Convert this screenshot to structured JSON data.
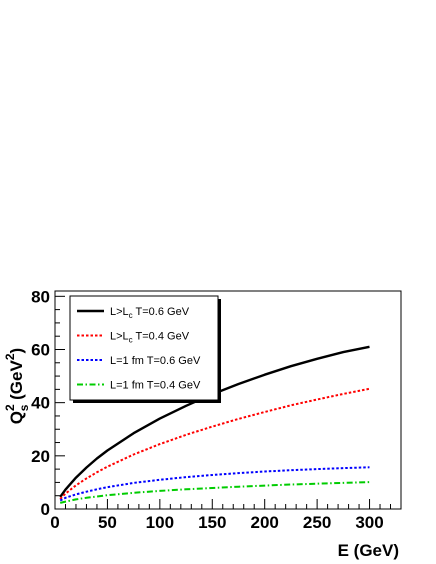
{
  "chart_data": {
    "type": "line",
    "xlabel": "E (GeV)",
    "ylabel_main": "Q",
    "ylabel_sup": "2",
    "ylabel_sub": "s",
    "ylabel_unit_pre": "(GeV",
    "ylabel_unit_sup": "2",
    "ylabel_unit_post": ")",
    "xlim": [
      0,
      330
    ],
    "ylim": [
      0,
      82
    ],
    "xticks": [
      0,
      50,
      100,
      150,
      200,
      250,
      300
    ],
    "yticks": [
      0,
      20,
      40,
      60,
      80
    ],
    "legend_position": "top-left",
    "grid": false,
    "x": [
      5,
      10,
      20,
      30,
      40,
      50,
      75,
      100,
      125,
      150,
      175,
      200,
      225,
      250,
      275,
      300
    ],
    "series": [
      {
        "label_parts": [
          "L>L",
          "c",
          "  T=0.6 GeV"
        ],
        "color": "#000000",
        "style": "solid",
        "values": [
          4.5,
          7.3,
          11.8,
          15.6,
          19.0,
          22.0,
          28.5,
          34.0,
          38.8,
          43.2,
          47.0,
          50.5,
          53.7,
          56.5,
          59.0,
          61.0
        ]
      },
      {
        "label_parts": [
          "L>L",
          "c",
          "  T=0.4 GeV"
        ],
        "color": "#ff0000",
        "style": "dotted",
        "values": [
          3.8,
          5.8,
          8.9,
          11.5,
          13.8,
          15.9,
          20.5,
          24.4,
          27.9,
          31.0,
          33.9,
          36.5,
          39.0,
          41.2,
          43.3,
          45.2
        ]
      },
      {
        "label_parts": [
          "L=1 fm T=0.6 GeV"
        ],
        "color": "#0000ff",
        "style": "dotted",
        "values": [
          3.2,
          4.2,
          5.5,
          6.5,
          7.4,
          8.2,
          9.8,
          11.0,
          12.0,
          12.8,
          13.5,
          14.1,
          14.6,
          15.0,
          15.4,
          15.7
        ]
      },
      {
        "label_parts": [
          "L=1 fm T=0.4 GeV"
        ],
        "color": "#00cc00",
        "style": "dashdot",
        "values": [
          2.3,
          2.8,
          3.6,
          4.2,
          4.7,
          5.2,
          6.1,
          6.8,
          7.4,
          7.9,
          8.4,
          8.8,
          9.2,
          9.5,
          9.8,
          10.1
        ]
      }
    ]
  }
}
